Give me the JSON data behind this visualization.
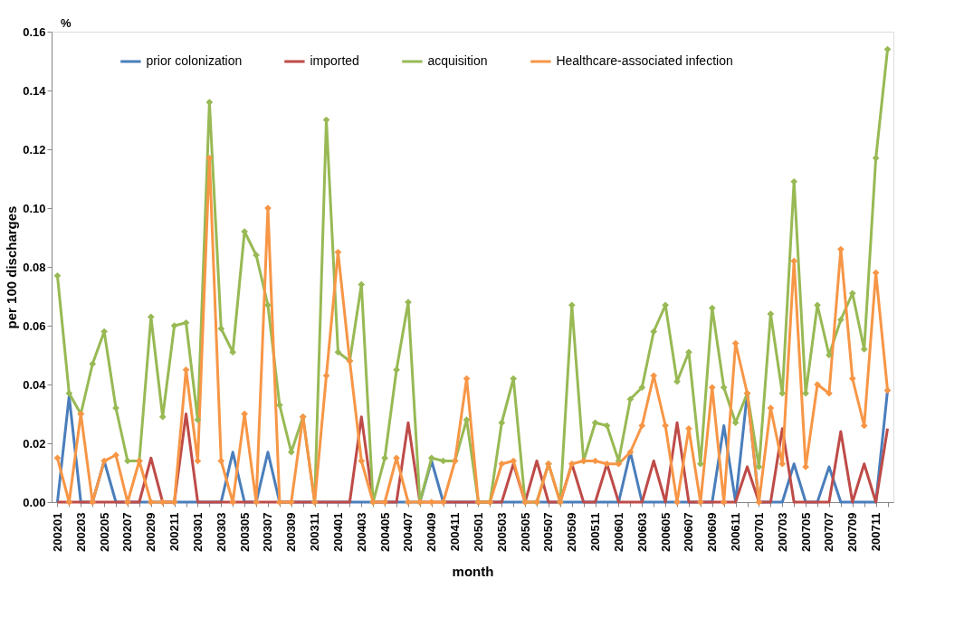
{
  "chart_data": {
    "type": "line",
    "ylabel": "per 100  discharges",
    "xlabel": "month",
    "annotations": [
      "%"
    ],
    "categories": [
      "200201",
      null,
      "200203",
      null,
      "200205",
      null,
      "200207",
      null,
      "200209",
      null,
      "200211",
      null,
      "200301",
      null,
      "200303",
      null,
      "200305",
      null,
      "200307",
      null,
      "200309",
      null,
      "200311",
      null,
      "200401",
      null,
      "200403",
      null,
      "200405",
      null,
      "200407",
      null,
      "200409",
      null,
      "200411",
      null,
      "200501",
      null,
      "200503",
      null,
      "200505",
      null,
      "200507",
      null,
      "200509",
      null,
      "200511",
      null,
      "200601",
      null,
      "200603",
      null,
      "200605",
      null,
      "200607",
      null,
      "200609",
      null,
      "200611",
      null,
      "200701",
      null,
      "200703",
      null,
      "200705",
      null,
      "200707",
      null,
      "200709",
      null,
      "200711",
      null
    ],
    "series": [
      {
        "name": "prior colonization",
        "color": "#4a7ebb",
        "marker": "none",
        "values": [
          0,
          0.036,
          0,
          0,
          0.014,
          0,
          0,
          0,
          0,
          0,
          0,
          0,
          0,
          0,
          0,
          0.017,
          0,
          0,
          0.017,
          0,
          0,
          0,
          0,
          0,
          0,
          0,
          0,
          0,
          0,
          0,
          0,
          0,
          0.014,
          0,
          0,
          0,
          0,
          0,
          0,
          0,
          0,
          0,
          0,
          0,
          0,
          0,
          0,
          0,
          0,
          0.017,
          0,
          0,
          0,
          0,
          0,
          0,
          0,
          0.026,
          0,
          0.037,
          0,
          0,
          0,
          0.013,
          0,
          0,
          0.012,
          0,
          0,
          0,
          0,
          0.038
        ]
      },
      {
        "name": "imported",
        "color": "#be4b48",
        "marker": "none",
        "values": [
          0,
          0,
          0,
          0,
          0,
          0,
          0,
          0,
          0.015,
          0,
          0,
          0.03,
          0,
          0,
          0,
          0,
          0,
          0,
          0,
          0,
          0,
          0,
          0,
          0,
          0,
          0,
          0.029,
          0,
          0,
          0,
          0.027,
          0,
          0,
          0,
          0,
          0,
          0,
          0,
          0,
          0.013,
          0,
          0.014,
          0,
          0,
          0.013,
          0,
          0,
          0.013,
          0,
          0,
          0,
          0.014,
          0,
          0.027,
          0,
          0,
          0,
          0,
          0,
          0.012,
          0,
          0,
          0.025,
          0,
          0,
          0,
          0,
          0.024,
          0,
          0.013,
          0,
          0.025
        ]
      },
      {
        "name": "acquisition",
        "color": "#98b954",
        "marker": "diamond",
        "values": [
          0.077,
          0.037,
          0.03,
          0.047,
          0.058,
          0.032,
          0.014,
          0.014,
          0.063,
          0.029,
          0.06,
          0.061,
          0.028,
          0.136,
          0.059,
          0.051,
          0.092,
          0.084,
          0.067,
          0.033,
          0.017,
          0.029,
          0,
          0.13,
          0.051,
          0.048,
          0.074,
          0,
          0.015,
          0.045,
          0.068,
          0,
          0.015,
          0.014,
          0.014,
          0.028,
          0,
          0,
          0.027,
          0.042,
          0,
          0,
          0.013,
          0,
          0.067,
          0.014,
          0.027,
          0.026,
          0.014,
          0.035,
          0.039,
          0.058,
          0.067,
          0.041,
          0.051,
          0.013,
          0.066,
          0.039,
          0.027,
          0.037,
          0.012,
          0.064,
          0.037,
          0.109,
          0.037,
          0.067,
          0.05,
          0.062,
          0.071,
          0.052,
          0.117,
          0.154
        ]
      },
      {
        "name": "Healthcare-associated  infection",
        "color": "#f79646",
        "marker": "diamond",
        "values": [
          0.015,
          0,
          0.03,
          0,
          0.014,
          0.016,
          0,
          0.014,
          0,
          0,
          0,
          0.045,
          0.014,
          0.117,
          0.014,
          0,
          0.03,
          0,
          0.1,
          0,
          0,
          0.029,
          0,
          0.043,
          0.085,
          0.048,
          0.014,
          0,
          0,
          0.015,
          0,
          0,
          0,
          0,
          0.014,
          0.042,
          0,
          0,
          0.013,
          0.014,
          0,
          0,
          0.013,
          0,
          0.013,
          0.014,
          0.014,
          0.013,
          0.013,
          0.017,
          0.026,
          0.043,
          0.026,
          0,
          0.025,
          0,
          0.039,
          0,
          0.054,
          0.037,
          0,
          0.032,
          0.013,
          0.082,
          0.012,
          0.04,
          0.037,
          0.086,
          0.042,
          0.026,
          0.078,
          0.038
        ]
      }
    ],
    "ylim": [
      0,
      0.16
    ],
    "yticks": [
      {
        "value": 0,
        "label": "0.00"
      },
      {
        "value": 0.02,
        "label": "0.02"
      },
      {
        "value": 0.04,
        "label": "0.04"
      },
      {
        "value": 0.06,
        "label": "0.06"
      },
      {
        "value": 0.08,
        "label": "0.08"
      },
      {
        "value": 0.1,
        "label": "0.10"
      },
      {
        "value": 0.12,
        "label": "0.12"
      },
      {
        "value": 0.14,
        "label": "0.14"
      },
      {
        "value": 0.16,
        "label": "0.16"
      }
    ],
    "grid": false,
    "legend": "top",
    "line_style": "solid"
  }
}
